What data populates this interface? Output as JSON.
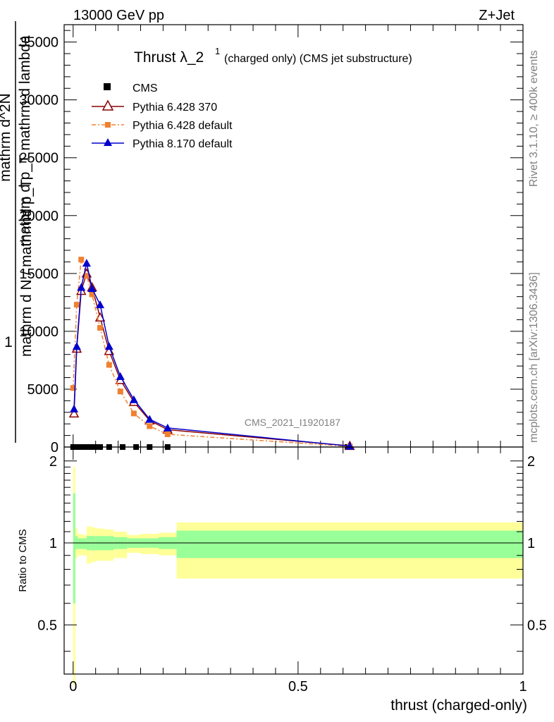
{
  "header": {
    "left": "13000 GeV pp",
    "right": "Z+Jet"
  },
  "side": {
    "rivet": "Rivet 3.1.10, ≥ 400k events",
    "mcplots": "mcplots.cern.ch [arXiv:1306.3436]"
  },
  "chart_data": [
    {
      "type": "line",
      "title_main": "Thrust λ_2",
      "title_sup": "1",
      "title_sub": " (charged only) (CMS jet substructure)",
      "watermark": "CMS_2021_I1920187",
      "ylabel_parts": [
        "1",
        "mathrm d N / mathrmd p_T",
        "mathrm d^2N",
        "mathrm d p_T mathrm d lambda"
      ],
      "xlim": [
        -0.02,
        1.0
      ],
      "ylim": [
        0,
        36500
      ],
      "yticks": [
        0,
        5000,
        10000,
        15000,
        20000,
        25000,
        30000,
        35000
      ],
      "ytick_labels": [
        "0",
        "5000",
        "10000",
        "15000",
        "20000",
        "25000",
        "30000",
        "35000"
      ],
      "legend": [
        "CMS",
        "Pythia 6.428 370",
        "Pythia 6.428 default",
        "Pythia 8.170 default"
      ],
      "series": [
        {
          "name": "CMS",
          "x": [
            0.0,
            0.01,
            0.02,
            0.03,
            0.04,
            0.05,
            0.06,
            0.08,
            0.11,
            0.14,
            0.17,
            0.21,
            0.61
          ],
          "y": [
            0,
            0,
            0,
            0,
            0,
            0,
            0,
            0,
            0,
            0,
            0,
            0,
            0
          ],
          "color": "#000000",
          "marker": "square"
        },
        {
          "name": "Pythia 6.428 370",
          "x": [
            0.002,
            0.008,
            0.018,
            0.03,
            0.042,
            0.06,
            0.08,
            0.105,
            0.135,
            0.17,
            0.21,
            0.615
          ],
          "y": [
            2900,
            8500,
            13500,
            15000,
            13800,
            11200,
            8300,
            5800,
            3900,
            2300,
            1500,
            100
          ],
          "color": "#8b0000",
          "marker": "triangle-open"
        },
        {
          "name": "Pythia 6.428 default",
          "x": [
            0.0,
            0.008,
            0.018,
            0.03,
            0.042,
            0.06,
            0.08,
            0.105,
            0.135,
            0.17,
            0.21,
            0.615
          ],
          "y": [
            5100,
            12300,
            16200,
            14800,
            13200,
            10300,
            7100,
            4800,
            2900,
            1800,
            1100,
            50
          ],
          "color": "#f08030",
          "marker": "square"
        },
        {
          "name": "Pythia 8.170 default",
          "x": [
            0.002,
            0.008,
            0.018,
            0.03,
            0.042,
            0.06,
            0.08,
            0.105,
            0.135,
            0.17,
            0.21,
            0.615
          ],
          "y": [
            3300,
            8700,
            13800,
            15900,
            13700,
            12300,
            8700,
            6100,
            4100,
            2400,
            1650,
            80
          ],
          "color": "#0000cd",
          "marker": "triangle"
        }
      ]
    },
    {
      "type": "area",
      "ylabel": "Ratio to CMS",
      "xlabel": "thrust (charged-only)",
      "xlim": [
        -0.02,
        1.0
      ],
      "ylim": [
        0.33,
        2.25
      ],
      "xticks": [
        0,
        0.5,
        1
      ],
      "xtick_labels": [
        "0",
        "0.5",
        "1"
      ],
      "yticks": [
        0.5,
        1,
        2
      ],
      "ytick_labels": [
        "0.5",
        "1",
        "2"
      ],
      "bins": [
        {
          "lo": 0.0,
          "hi": 0.005,
          "g": [
            0.6,
            1.52
          ],
          "y": [
            0.3,
            1.9
          ]
        },
        {
          "lo": 0.005,
          "hi": 0.01,
          "g": [
            0.95,
            1.06
          ],
          "y": [
            0.88,
            1.13
          ]
        },
        {
          "lo": 0.01,
          "hi": 0.02,
          "g": [
            0.95,
            1.04
          ],
          "y": [
            0.9,
            1.08
          ]
        },
        {
          "lo": 0.02,
          "hi": 0.03,
          "g": [
            0.95,
            1.04
          ],
          "y": [
            0.9,
            1.07
          ]
        },
        {
          "lo": 0.03,
          "hi": 0.04,
          "g": [
            0.94,
            1.06
          ],
          "y": [
            0.84,
            1.15
          ]
        },
        {
          "lo": 0.04,
          "hi": 0.05,
          "g": [
            0.94,
            1.06
          ],
          "y": [
            0.85,
            1.14
          ]
        },
        {
          "lo": 0.05,
          "hi": 0.07,
          "g": [
            0.94,
            1.06
          ],
          "y": [
            0.86,
            1.13
          ]
        },
        {
          "lo": 0.07,
          "hi": 0.09,
          "g": [
            0.94,
            1.06
          ],
          "y": [
            0.86,
            1.12
          ]
        },
        {
          "lo": 0.09,
          "hi": 0.12,
          "g": [
            0.95,
            1.05
          ],
          "y": [
            0.88,
            1.1
          ]
        },
        {
          "lo": 0.12,
          "hi": 0.15,
          "g": [
            0.96,
            1.04
          ],
          "y": [
            0.92,
            1.07
          ]
        },
        {
          "lo": 0.15,
          "hi": 0.19,
          "g": [
            0.96,
            1.04
          ],
          "y": [
            0.91,
            1.08
          ]
        },
        {
          "lo": 0.19,
          "hi": 0.23,
          "g": [
            0.95,
            1.05
          ],
          "y": [
            0.9,
            1.09
          ]
        },
        {
          "lo": 0.23,
          "hi": 1.0,
          "g": [
            0.88,
            1.11
          ],
          "y": [
            0.74,
            1.19
          ]
        }
      ]
    }
  ]
}
